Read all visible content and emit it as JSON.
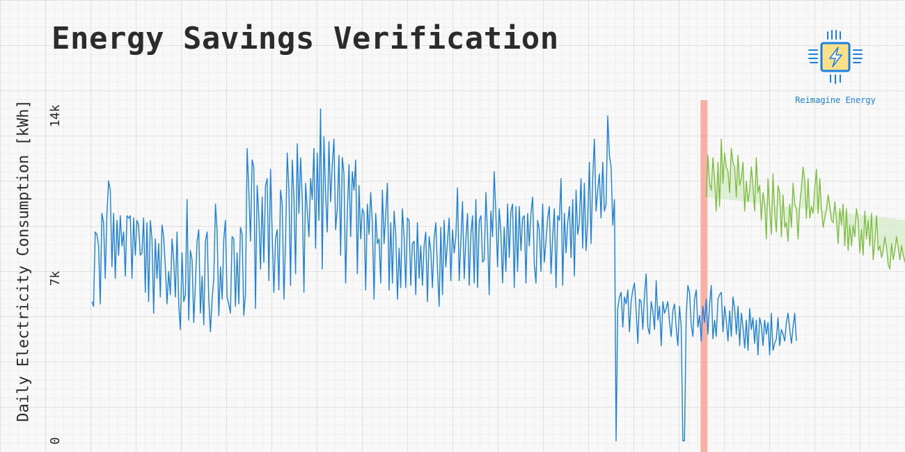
{
  "title": "Energy Savings Verification",
  "logo": {
    "text": "Reimagine Energy",
    "icon": "chip-lightning-icon"
  },
  "colors": {
    "actual": "#1a7fe0",
    "baseline": "#7dbd3f",
    "savings_fill": "#d5ecc9",
    "cutoff": "#f7a595",
    "text": "#2b2b2b"
  },
  "chart_data": {
    "type": "line",
    "title": "Energy Savings Verification",
    "xlabel": "",
    "ylabel": "Daily Electricity Consumption [kWh]",
    "ylim": [
      0,
      14800
    ],
    "yticks": [
      0,
      7000,
      14000
    ],
    "ytick_labels": [
      "0",
      "7k",
      "14k"
    ],
    "grid": true,
    "legend": "none",
    "x": "day index",
    "intervention_day": 365,
    "series": [
      {
        "role": "actual",
        "x_start": 0,
        "values": [
          6000,
          5800,
          9000,
          8900,
          8400,
          5900,
          9800,
          9400,
          7000,
          9800,
          11200,
          10800,
          7500,
          9800,
          7000,
          9500,
          8000,
          9700,
          8400,
          9000,
          7100,
          9700,
          9600,
          9700,
          7000,
          9600,
          8000,
          9500,
          9300,
          8000,
          8100,
          9600,
          6400,
          9400,
          6000,
          9500,
          8700,
          5500,
          8700,
          7000,
          8500,
          6200,
          9300,
          8800,
          7500,
          5900,
          7300,
          6300,
          8700,
          7800,
          6200,
          9000,
          5900,
          4800,
          8100,
          6000,
          6300,
          10400,
          5200,
          8200,
          7800,
          5100,
          6800,
          8600,
          9100,
          5500,
          7100,
          5000,
          8600,
          9000,
          6100,
          4700,
          6100,
          7000,
          10200,
          9000,
          5400,
          7500,
          6100,
          8700,
          9500,
          6200,
          5900,
          5500,
          8800,
          8700,
          5800,
          8100,
          5900,
          9200,
          8900,
          5400,
          6300,
          12600,
          10800,
          8600,
          12100,
          11800,
          5700,
          11000,
          9700,
          7400,
          10500,
          7700,
          11000,
          11300,
          6900,
          11700,
          8900,
          6400,
          8700,
          9100,
          6500,
          10800,
          10200,
          6100,
          8600,
          12400,
          10800,
          6700,
          12100,
          10500,
          7200,
          12800,
          9800,
          12200,
          10400,
          6400,
          11100,
          9900,
          8800,
          11300,
          10400,
          12600,
          8300,
          12400,
          9500,
          14300,
          7400,
          13100,
          10600,
          9000,
          12900,
          10300,
          11900,
          13000,
          9100,
          10000,
          12300,
          8000,
          12200,
          11500,
          6800,
          9800,
          11900,
          8800,
          11600,
          10800,
          12100,
          7200,
          11000,
          8700,
          10000,
          9800,
          6500,
          10200,
          8900,
          10700,
          9400,
          6100,
          9800,
          8500,
          8700,
          6800,
          10800,
          8500,
          9800,
          11100,
          6500,
          9400,
          6800,
          9900,
          8900,
          6100,
          8300,
          6600,
          10000,
          8800,
          6600,
          9600,
          9500,
          6700,
          8500,
          8600,
          6300,
          9400,
          7000,
          8400,
          6700,
          8400,
          9000,
          6000,
          8800,
          8200,
          6600,
          8700,
          9400,
          7400,
          5800,
          9200,
          6300,
          9500,
          7500,
          8600,
          9600,
          6900,
          9100,
          8100,
          8800,
          10900,
          6900,
          8600,
          10300,
          7000,
          8700,
          9800,
          6700,
          8900,
          9700,
          6800,
          10400,
          6600,
          9500,
          9700,
          7700,
          7800,
          10700,
          8800,
          6300,
          9900,
          8800,
          11600,
          9800,
          7500,
          10000,
          9000,
          6800,
          9200,
          7300,
          10200,
          7900,
          9900,
          10200,
          6600,
          10100,
          7300,
          10100,
          8200,
          9600,
          9700,
          6800,
          9800,
          8400,
          9800,
          10500,
          7600,
          6800,
          9500,
          9100,
          7300,
          10200,
          7700,
          8600,
          9600,
          10100,
          7200,
          8800,
          10000,
          6600,
          9700,
          9500,
          11300,
          6700,
          9800,
          8100,
          9400,
          10100,
          7900,
          10400,
          7100,
          10800,
          8900,
          9400,
          11300,
          8300,
          11100,
          8200,
          9500,
          12000,
          8500,
          11300,
          13000,
          9900,
          10800,
          11500,
          9600,
          12000,
          9900,
          10200,
          14000,
          12300,
          11800,
          9300,
          10400,
          0,
          5700,
          6200,
          6400,
          4900,
          6200,
          5900,
          6500,
          4700,
          6000,
          6500,
          6800,
          5600,
          4200,
          6100,
          6000,
          4800,
          6300,
          7200,
          4900,
          4600,
          6000,
          5600,
          4800,
          6900,
          5200,
          5800,
          4100,
          6000,
          5500,
          5700,
          6000,
          5100,
          4500,
          5600,
          5900,
          4900,
          4100,
          5800,
          4900,
          0,
          0,
          5400,
          6700,
          6400,
          5000,
          4500,
          6100,
          6500,
          4900,
          5400,
          4300,
          5800,
          5100,
          6100,
          4600,
          5900,
          6700,
          4400,
          5200,
          4500,
          6100,
          6300,
          6400,
          4700,
          5800,
          5200,
          4300,
          5600,
          4500,
          6200,
          5700,
          4600,
          5800,
          4100,
          5500,
          4900,
          4000,
          5200,
          3900,
          5700,
          4800,
          5300,
          4200,
          5200,
          3700,
          5300,
          5000,
          4100,
          5200,
          4600,
          5100,
          3700,
          5500,
          3900,
          4200,
          4400,
          5300,
          4100,
          4800,
          4600,
          4300,
          5100,
          5500,
          4800,
          4200,
          4900,
          5500,
          4300
        ]
      },
      {
        "role": "baseline",
        "x_start": 368,
        "values": [
          10500,
          12300,
          11100,
          10800,
          12200,
          11300,
          9900,
          12000,
          10100,
          13000,
          11100,
          12400,
          11800,
          11600,
          10700,
          12600,
          12000,
          11800,
          10500,
          12300,
          11000,
          11300,
          12000,
          9900,
          11200,
          10300,
          10800,
          11800,
          11000,
          9900,
          12200,
          10700,
          11000,
          9500,
          10700,
          10200,
          8700,
          11300,
          10000,
          8900,
          11500,
          9800,
          9000,
          11000,
          10700,
          8800,
          10600,
          9200,
          9400,
          8600,
          10200,
          9200,
          11100,
          10200,
          10000,
          8700,
          10200,
          10900,
          11800,
          11200,
          9600,
          11300,
          9600,
          10100,
          9800,
          10900,
          11700,
          9800,
          11300,
          10000,
          9200,
          9600,
          10000,
          10600,
          10100,
          9500,
          9400,
          10300,
          9500,
          8500,
          10000,
          9300,
          10200,
          8400,
          10000,
          8200,
          9300,
          8400,
          9300,
          8800,
          10000,
          9500,
          8100,
          9100,
          8000,
          9900,
          8700,
          9500,
          8400,
          9800,
          7800,
          8600,
          9700,
          8200,
          8400,
          7900,
          8200,
          8800,
          8300,
          7600,
          7400,
          8500,
          7800,
          8200,
          8800,
          8300,
          7800,
          8400,
          8000,
          7700,
          8000,
          9500,
          7600,
          8300,
          8600,
          8100,
          7600,
          8300,
          7800,
          8800,
          9300,
          9500,
          9000,
          9400
        ]
      }
    ]
  }
}
